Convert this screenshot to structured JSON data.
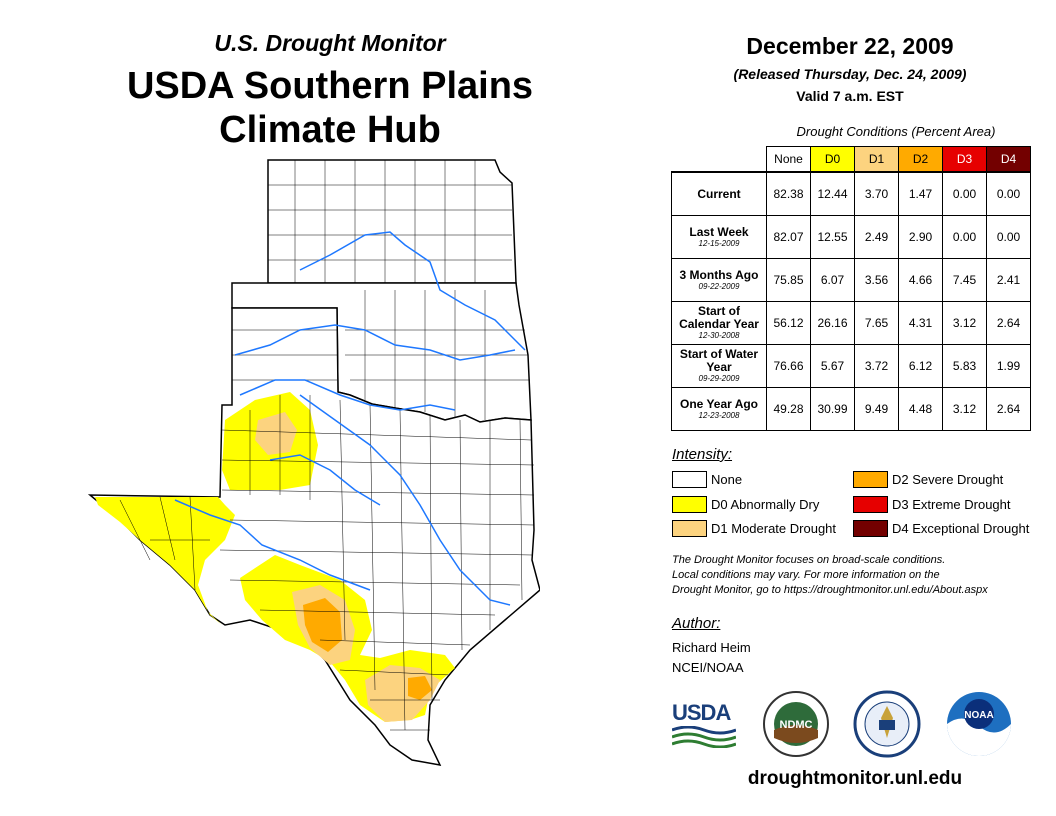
{
  "header": {
    "subtitle": "U.S. Drought Monitor",
    "title_line1": "USDA Southern Plains",
    "title_line2": "Climate Hub"
  },
  "info": {
    "date": "December 22, 2009",
    "released": "(Released Thursday, Dec. 24, 2009)",
    "valid": "Valid 7 a.m. EST"
  },
  "conditions": {
    "caption": "Drought Conditions (Percent Area)",
    "columns": [
      {
        "label": "None",
        "color": "#ffffff"
      },
      {
        "label": "D0",
        "color": "#ffff00"
      },
      {
        "label": "D1",
        "color": "#fcd37f"
      },
      {
        "label": "D2",
        "color": "#ffaa00"
      },
      {
        "label": "D3",
        "color": "#e60000"
      },
      {
        "label": "D4",
        "color": "#730000"
      }
    ],
    "rows": [
      {
        "label": "Current",
        "date": "",
        "values": [
          "82.38",
          "12.44",
          "3.70",
          "1.47",
          "0.00",
          "0.00"
        ]
      },
      {
        "label": "Last Week",
        "date": "12-15-2009",
        "values": [
          "82.07",
          "12.55",
          "2.49",
          "2.90",
          "0.00",
          "0.00"
        ]
      },
      {
        "label": "3 Months Ago",
        "date": "09-22-2009",
        "values": [
          "75.85",
          "6.07",
          "3.56",
          "4.66",
          "7.45",
          "2.41"
        ]
      },
      {
        "label": "Start of Calendar Year",
        "date": "12-30-2008",
        "values": [
          "56.12",
          "26.16",
          "7.65",
          "4.31",
          "3.12",
          "2.64"
        ]
      },
      {
        "label": "Start of Water Year",
        "date": "09-29-2009",
        "values": [
          "76.66",
          "5.67",
          "3.72",
          "6.12",
          "5.83",
          "1.99"
        ]
      },
      {
        "label": "One Year Ago",
        "date": "12-23-2008",
        "values": [
          "49.28",
          "30.99",
          "9.49",
          "4.48",
          "3.12",
          "2.64"
        ]
      }
    ]
  },
  "legend": {
    "title": "Intensity:",
    "items": [
      {
        "label": "None",
        "color": "#ffffff"
      },
      {
        "label": "D0 Abnormally Dry",
        "color": "#ffff00"
      },
      {
        "label": "D1 Moderate Drought",
        "color": "#fcd37f"
      },
      {
        "label": "D2 Severe Drought",
        "color": "#ffaa00"
      },
      {
        "label": "D3 Extreme Drought",
        "color": "#e60000"
      },
      {
        "label": "D4 Exceptional Drought",
        "color": "#730000"
      }
    ]
  },
  "note": {
    "line1": "The Drought Monitor focuses on broad-scale conditions.",
    "line2": "Local conditions may vary. For more information on the",
    "line3": "Drought Monitor, go to https://droughtmonitor.unl.edu/About.aspx"
  },
  "author": {
    "heading": "Author:",
    "name": "Richard Heim",
    "org": "NCEI/NOAA"
  },
  "logos": {
    "usda": "USDA",
    "ndmc": "NDMC",
    "noaa": "NOAA"
  },
  "footer_url": "droughtmonitor.unl.edu"
}
